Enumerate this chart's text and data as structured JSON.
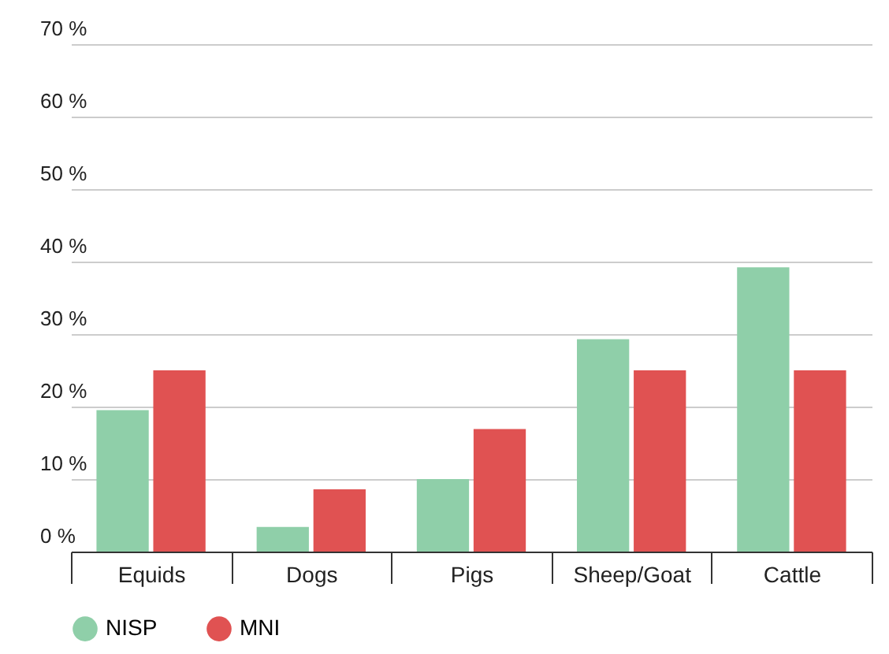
{
  "chart_data": {
    "type": "bar",
    "categories": [
      "Equids",
      "Dogs",
      "Pigs",
      "Sheep/Goat",
      "Cattle"
    ],
    "series": [
      {
        "name": "NISP",
        "color": "#8fcfa9",
        "values": [
          19.5,
          3.4,
          10,
          29.3,
          39.2
        ]
      },
      {
        "name": "MNI",
        "color": "#e05252",
        "values": [
          25,
          8.6,
          16.9,
          25,
          25
        ]
      }
    ],
    "ylim": [
      0,
      70
    ],
    "yticks": [
      {
        "value": 0,
        "label": "0 %"
      },
      {
        "value": 10,
        "label": "10 %"
      },
      {
        "value": 20,
        "label": "20 %"
      },
      {
        "value": 30,
        "label": "30 %"
      },
      {
        "value": 40,
        "label": "40 %"
      },
      {
        "value": 50,
        "label": "50 %"
      },
      {
        "value": 60,
        "label": "60 %"
      },
      {
        "value": 70,
        "label": "70 %"
      }
    ],
    "grid": "y",
    "legend": "bottom"
  }
}
